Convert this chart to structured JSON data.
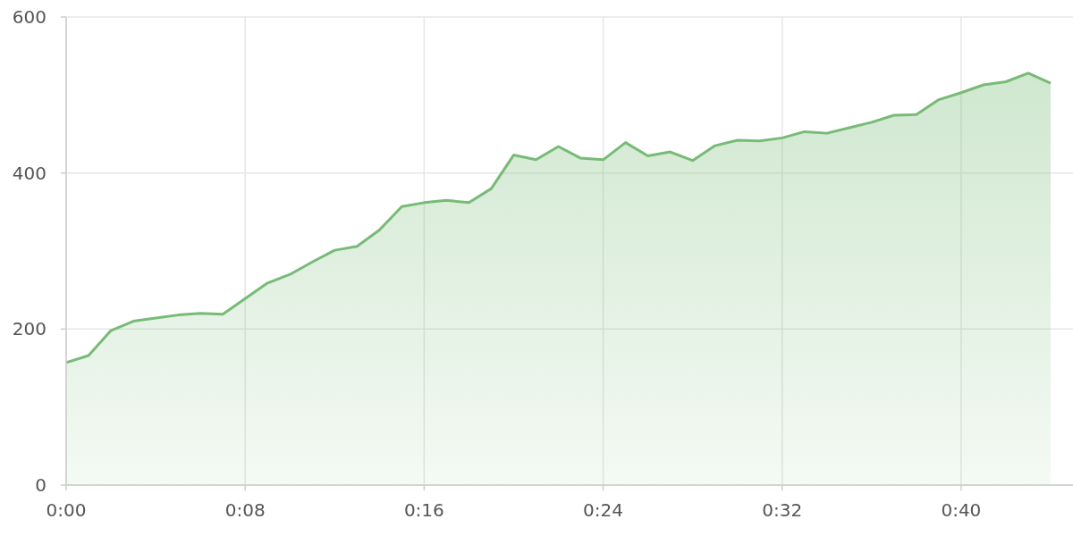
{
  "chart_data": {
    "type": "area",
    "x": [
      0,
      1,
      2,
      3,
      4,
      5,
      6,
      7,
      8,
      9,
      10,
      11,
      12,
      13,
      14,
      15,
      16,
      17,
      18,
      19,
      20,
      21,
      22,
      23,
      24,
      25,
      26,
      27,
      28,
      29,
      30,
      31,
      32,
      33,
      34,
      35,
      36,
      37,
      38,
      39,
      40,
      41,
      42,
      43,
      44
    ],
    "series": [
      {
        "color": "#77bb77",
        "values": [
          157,
          166,
          198,
          210,
          214,
          218,
          220,
          219,
          239,
          259,
          270,
          286,
          301,
          306,
          327,
          357,
          362,
          365,
          362,
          380,
          423,
          417,
          434,
          419,
          417,
          439,
          422,
          427,
          416,
          435,
          442,
          441,
          445,
          453,
          451,
          458,
          465,
          474,
          475,
          494,
          503,
          513,
          517,
          528,
          515
        ]
      }
    ],
    "xlim": [
      0,
      45
    ],
    "xticks": [
      {
        "value": 0,
        "label": "0:00"
      },
      {
        "value": 8,
        "label": "0:08"
      },
      {
        "value": 16,
        "label": "0:16"
      },
      {
        "value": 24,
        "label": "0:24"
      },
      {
        "value": 32,
        "label": "0:32"
      },
      {
        "value": 40,
        "label": "0:40"
      }
    ],
    "ylim": [
      0,
      600
    ],
    "yticks": [
      0,
      200,
      400,
      600
    ],
    "grid": true
  }
}
